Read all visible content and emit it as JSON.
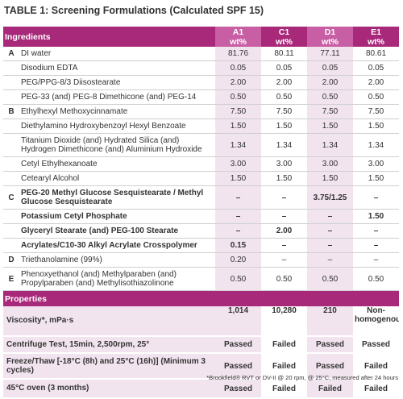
{
  "title": "TABLE 1: Screening Formulations (Calculated SPF 15)",
  "header": {
    "ingredients": "Ingredients",
    "columns": [
      {
        "name": "A1",
        "unit": "wt%"
      },
      {
        "name": "C1",
        "unit": "wt%"
      },
      {
        "name": "D1",
        "unit": "wt%"
      },
      {
        "name": "E1",
        "unit": "wt%"
      }
    ]
  },
  "rows": [
    {
      "section": "A",
      "ingredient": "DI water",
      "values": [
        "81.76",
        "80.11",
        "77.11",
        "80.61"
      ]
    },
    {
      "section": "",
      "ingredient": "Disodium EDTA",
      "values": [
        "0.05",
        "0.05",
        "0.05",
        "0.05"
      ]
    },
    {
      "section": "",
      "ingredient": "PEG/PPG-8/3 Diisostearate",
      "values": [
        "2.00",
        "2.00",
        "2.00",
        "2.00"
      ]
    },
    {
      "section": "",
      "ingredient": "PEG-33 (and) PEG-8 Dimethicone (and) PEG-14",
      "values": [
        "0.50",
        "0.50",
        "0.50",
        "0.50"
      ]
    },
    {
      "section": "B",
      "ingredient": "Ethylhexyl Methoxycinnamate",
      "values": [
        "7.50",
        "7.50",
        "7.50",
        "7.50"
      ]
    },
    {
      "section": "",
      "ingredient": "Diethylamino Hydroxybenzoyl Hexyl Benzoate",
      "values": [
        "1.50",
        "1.50",
        "1.50",
        "1.50"
      ]
    },
    {
      "section": "",
      "ingredient": "Titanium Dioxide (and) Hydrated Silica (and) Hydrogen Dimethicone (and) Aluminium Hydroxide",
      "values": [
        "1.34",
        "1.34",
        "1.34",
        "1.34"
      ]
    },
    {
      "section": "",
      "ingredient": "Cetyl Ethylhexanoate",
      "values": [
        "3.00",
        "3.00",
        "3.00",
        "3.00"
      ]
    },
    {
      "section": "",
      "ingredient": "Cetearyl Alcohol",
      "values": [
        "1.50",
        "1.50",
        "1.50",
        "1.50"
      ]
    },
    {
      "section": "C",
      "ingredient": "PEG-20 Methyl Glucose Sesquistearate / Methyl Glucose Sesquistearate",
      "values": [
        "–",
        "–",
        "3.75/1.25",
        "–"
      ]
    },
    {
      "section": "",
      "ingredient": "Potassium Cetyl Phosphate",
      "values": [
        "–",
        "–",
        "–",
        "1.50"
      ]
    },
    {
      "section": "",
      "ingredient": "Glyceryl Stearate (and) PEG-100 Stearate",
      "values": [
        "–",
        "2.00",
        "–",
        "–"
      ]
    },
    {
      "section": "",
      "ingredient": "Acrylates/C10-30 Alkyl Acrylate Crosspolymer",
      "values": [
        "0.15",
        "–",
        "–",
        "–"
      ]
    },
    {
      "section": "D",
      "ingredient": "Triethanolamine (99%)",
      "values": [
        "0.20",
        "–",
        "–",
        "–"
      ]
    },
    {
      "section": "E",
      "ingredient": "Phenoxyethanol (and) Methylparaben (and) Propylparaben (and) Methylisothiazolinone",
      "values": [
        "0.50",
        "0.50",
        "0.50",
        "0.50"
      ]
    }
  ],
  "properties": {
    "label": "Properties",
    "rows": [
      {
        "name": "Viscosity*, mPa·s",
        "values": [
          "1,014",
          "10,280",
          "210",
          "Non-homogenous"
        ]
      },
      {
        "name": "Centrifuge Test, 15min, 2,500rpm, 25°",
        "values": [
          "Passed",
          "Failed",
          "Passed",
          "Passed"
        ]
      },
      {
        "name": "Freeze/Thaw [-18°C (8h) and 25°C (16h)] (Minimum 3 cycles)",
        "values": [
          "Passed",
          "Failed",
          "Passed",
          "Failed"
        ]
      },
      {
        "name": "45°C oven (3 months)",
        "values": [
          "Passed",
          "Failed",
          "Failed",
          "Failed"
        ]
      }
    ]
  },
  "footnote": "*Brookfield® RVT or DV-II @ 20 rpm, @ 25°C, measured after 24 hours"
}
